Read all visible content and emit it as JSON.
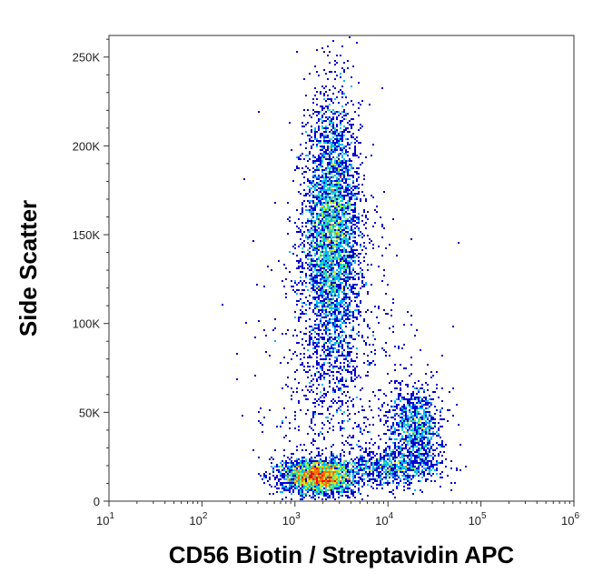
{
  "chart_data": {
    "type": "scatter",
    "title": "",
    "xlabel": "CD56 Biotin / Streptavidin APC",
    "ylabel": "Side Scatter",
    "x_scale": "log",
    "xlim": [
      10,
      1000000
    ],
    "ylim": [
      0,
      262144
    ],
    "x_ticks": [
      {
        "value": 10,
        "base": "10",
        "exp": "1"
      },
      {
        "value": 100,
        "base": "10",
        "exp": "2"
      },
      {
        "value": 1000,
        "base": "10",
        "exp": "3"
      },
      {
        "value": 10000,
        "base": "10",
        "exp": "4"
      },
      {
        "value": 100000,
        "base": "10",
        "exp": "5"
      },
      {
        "value": 1000000,
        "base": "10",
        "exp": "6"
      }
    ],
    "y_ticks": [
      {
        "value": 0,
        "label": "0"
      },
      {
        "value": 50000,
        "label": "50K"
      },
      {
        "value": 100000,
        "label": "100K"
      },
      {
        "value": 150000,
        "label": "150K"
      },
      {
        "value": 200000,
        "label": "200K"
      },
      {
        "value": 250000,
        "label": "250K"
      }
    ],
    "grid": false,
    "legend": "none",
    "colormap": [
      "#0000cc",
      "#0050ff",
      "#00b4ff",
      "#30e0b0",
      "#a0f040",
      "#ffe000",
      "#ff7000",
      "#ff0000"
    ],
    "populations": [
      {
        "x_center": 2500,
        "y_center": 150000,
        "x_spread_decades": 0.15,
        "y_spread": 38000,
        "weight": 0.46
      },
      {
        "x_center": 1800,
        "y_center": 14000,
        "x_spread_decades": 0.2,
        "y_spread": 5000,
        "weight": 0.26
      },
      {
        "x_center": 20000,
        "y_center": 42000,
        "x_spread_decades": 0.14,
        "y_spread": 11000,
        "weight": 0.1
      },
      {
        "x_center": 12000,
        "y_center": 19000,
        "x_spread_decades": 0.25,
        "y_spread": 5000,
        "weight": 0.08
      },
      {
        "x_center": 3000,
        "y_center": 60000,
        "x_spread_decades": 0.4,
        "y_spread": 50000,
        "weight": 0.1
      }
    ]
  }
}
